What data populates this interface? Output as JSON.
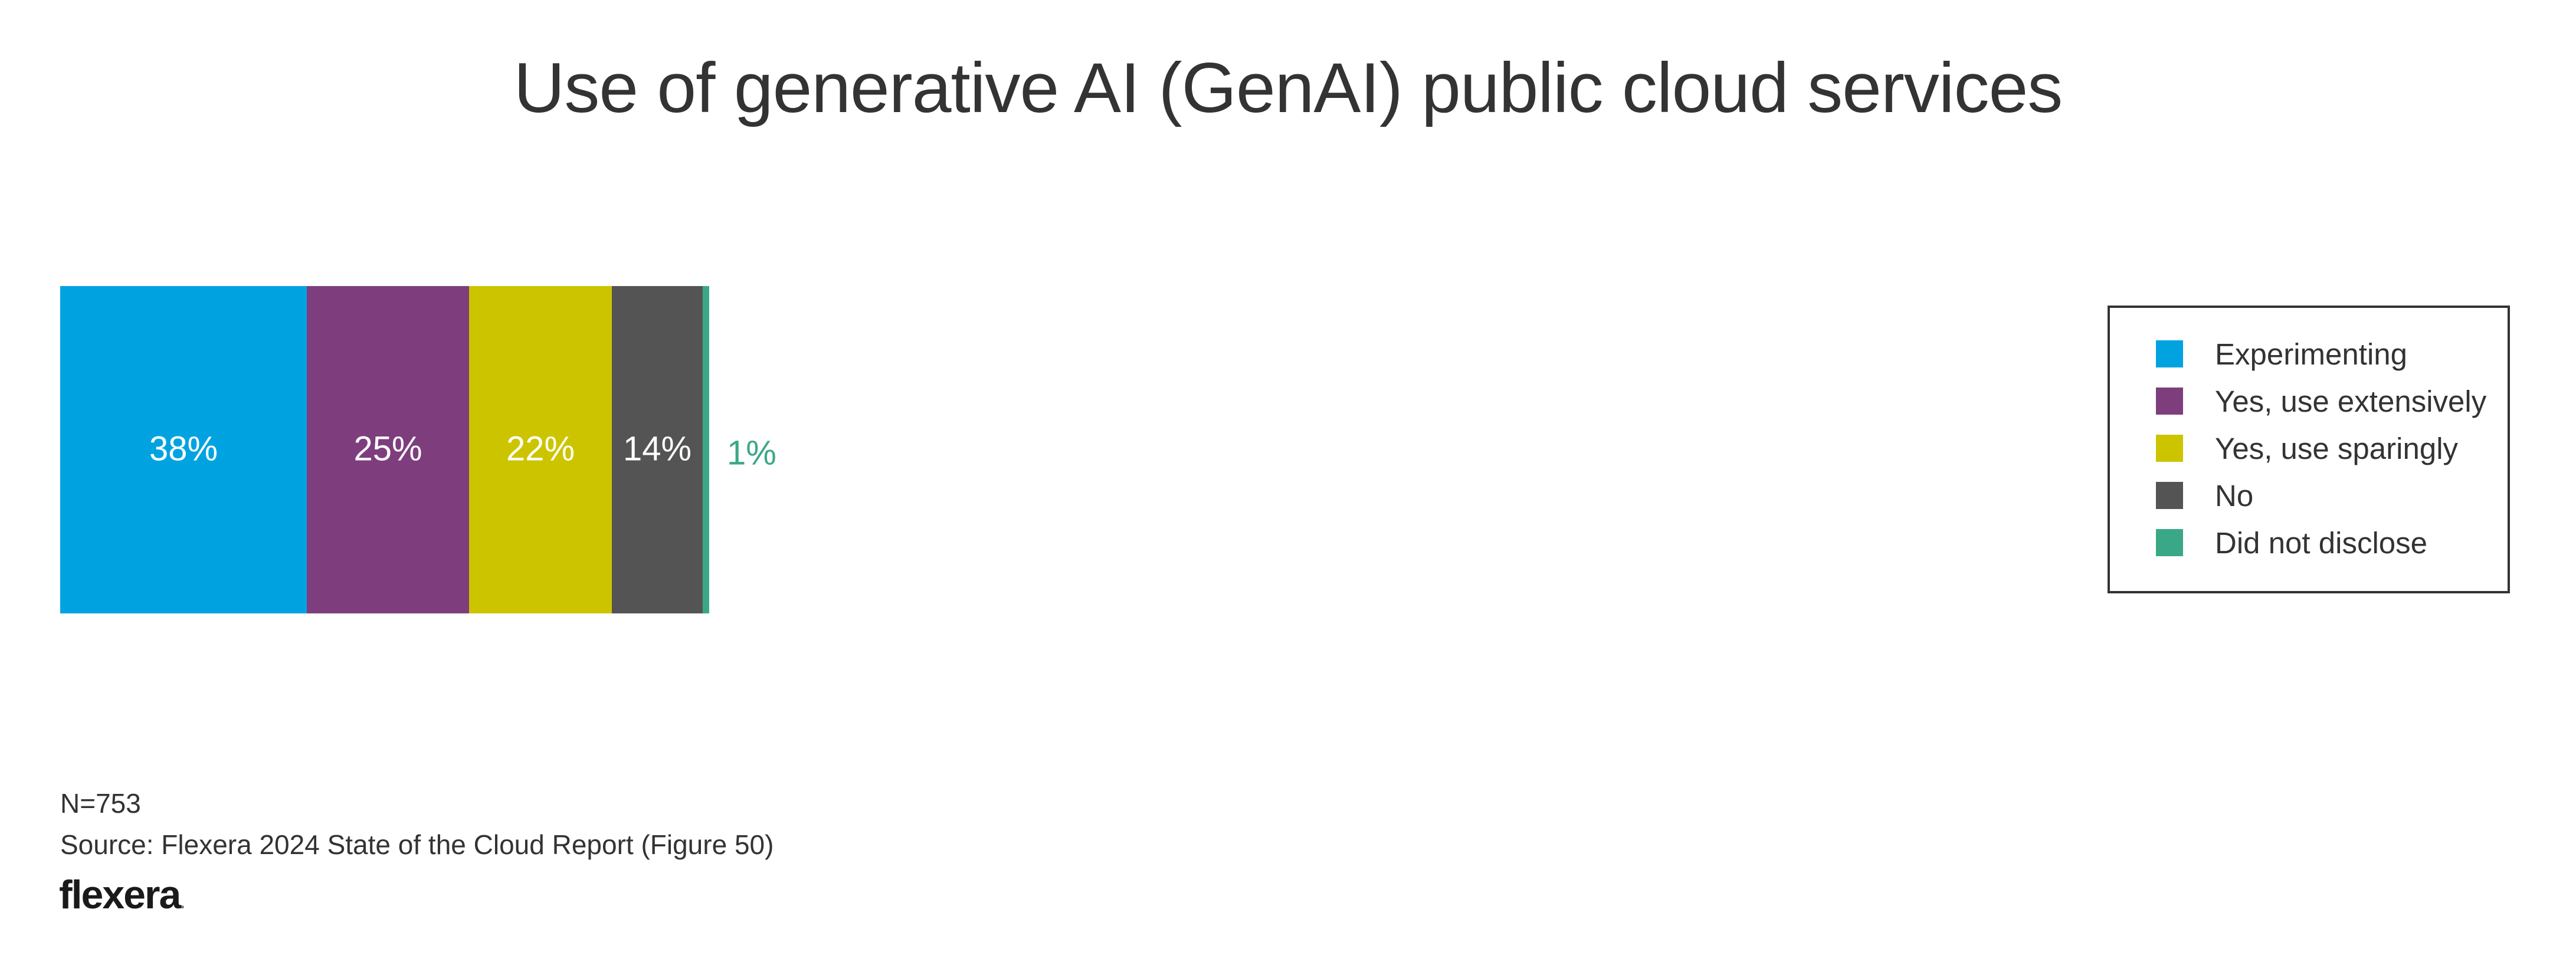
{
  "chart_data": {
    "type": "bar",
    "orientation": "horizontal-stacked",
    "title": "Use of generative AI (GenAI) public cloud services",
    "xlim": [
      0,
      100
    ],
    "series": [
      {
        "name": "Experimenting",
        "value": 38,
        "label": "38%",
        "color": "#00a3e0"
      },
      {
        "name": "Yes, use extensively",
        "value": 25,
        "label": "25%",
        "color": "#7e3e7e"
      },
      {
        "name": "Yes, use sparingly",
        "value": 22,
        "label": "22%",
        "color": "#cdc400"
      },
      {
        "name": "No",
        "value": 14,
        "label": "14%",
        "color": "#545454"
      },
      {
        "name": "Did not disclose",
        "value": 1,
        "label": "1%",
        "color": "#3aa886"
      }
    ],
    "legend_position": "right",
    "grid": false
  },
  "footer": {
    "sample": "N=753",
    "source": "Source: Flexera 2024 State of the Cloud Report (Figure 50)"
  },
  "logo": {
    "text": "flexera",
    "mark": "."
  }
}
